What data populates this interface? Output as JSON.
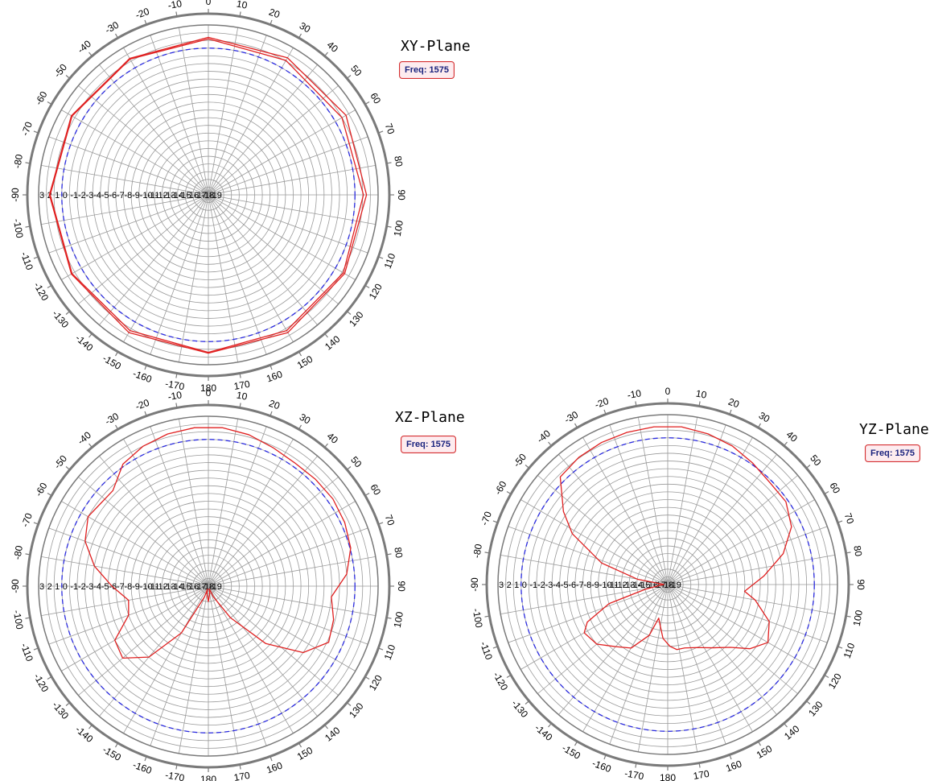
{
  "chart_data": [
    {
      "type": "polar",
      "title": "XY-Plane",
      "badge": "Freq: 1575",
      "angle_labels": [
        "0",
        "10",
        "20",
        "30",
        "40",
        "50",
        "60",
        "70",
        "80",
        "90",
        "100",
        "110",
        "120",
        "130",
        "140",
        "150",
        "160",
        "170",
        "180",
        "-170",
        "-160",
        "-150",
        "-140",
        "-130",
        "-120",
        "-110",
        "-100",
        "-90",
        "-80",
        "-70",
        "-60",
        "-50",
        "-40",
        "-30",
        "-20",
        "-10"
      ],
      "radial_labels": [
        "3",
        "2",
        "1",
        "0",
        "-1",
        "-2",
        "-3",
        "-4",
        "-5",
        "-6",
        "-7",
        "-8",
        "-9",
        "-10",
        "-11",
        "-12",
        "-13",
        "-14",
        "-15",
        "-16",
        "-17",
        "-18",
        "-19"
      ],
      "rlim": [
        -19,
        3
      ],
      "grid": true,
      "reference_level": 0,
      "series": [
        {
          "values": [
            {
              "angle": 0,
              "gain": 1.4
            },
            {
              "angle": 30,
              "gain": 1.5
            },
            {
              "angle": 60,
              "gain": 1.6
            },
            {
              "angle": 90,
              "gain": 1.5
            },
            {
              "angle": 120,
              "gain": 1.4
            },
            {
              "angle": 150,
              "gain": 1.6
            },
            {
              "angle": 180,
              "gain": 1.5
            },
            {
              "angle": 210,
              "gain": 1.6
            },
            {
              "angle": 240,
              "gain": 1.5
            },
            {
              "angle": 270,
              "gain": 1.6
            },
            {
              "angle": 300,
              "gain": 1.5
            },
            {
              "angle": 330,
              "gain": 1.4
            },
            {
              "angle": 360,
              "gain": 1.4
            }
          ]
        },
        {
          "values": [
            {
              "angle": 0,
              "gain": 1.2
            },
            {
              "angle": 30,
              "gain": 1.1
            },
            {
              "angle": 60,
              "gain": 1.0
            },
            {
              "angle": 90,
              "gain": 1.1
            },
            {
              "angle": 120,
              "gain": 1.2
            },
            {
              "angle": 150,
              "gain": 1.3
            },
            {
              "angle": 180,
              "gain": 1.4
            },
            {
              "angle": 210,
              "gain": 1.3
            },
            {
              "angle": 240,
              "gain": 1.4
            },
            {
              "angle": 270,
              "gain": 1.5
            },
            {
              "angle": 300,
              "gain": 1.4
            },
            {
              "angle": 330,
              "gain": 1.3
            },
            {
              "angle": 360,
              "gain": 1.2
            }
          ]
        }
      ]
    },
    {
      "type": "polar",
      "title": "XZ-Plane",
      "badge": "Freq: 1575",
      "angle_labels": [
        "0",
        "10",
        "20",
        "30",
        "40",
        "50",
        "60",
        "70",
        "80",
        "90",
        "100",
        "110",
        "120",
        "130",
        "140",
        "150",
        "160",
        "170",
        "180",
        "-170",
        "-160",
        "-150",
        "-140",
        "-130",
        "-120",
        "-110",
        "-100",
        "-90",
        "-80",
        "-70",
        "-60",
        "-50",
        "-40",
        "-30",
        "-20",
        "-10"
      ],
      "radial_labels": [
        "3",
        "2",
        "1",
        "0",
        "-1",
        "-2",
        "-3",
        "-4",
        "-5",
        "-6",
        "-7",
        "-8",
        "-9",
        "-10",
        "-11",
        "-12",
        "-13",
        "-14",
        "-15",
        "-16",
        "-17",
        "-18",
        "-19"
      ],
      "rlim": [
        -19,
        3
      ],
      "grid": true,
      "reference_level": 0,
      "series": [
        {
          "values": [
            {
              "angle": -45,
              "gain": -1.5
            },
            {
              "angle": -35,
              "gain": 0.3
            },
            {
              "angle": -25,
              "gain": 1.0
            },
            {
              "angle": -15,
              "gain": 1.4
            },
            {
              "angle": -5,
              "gain": 1.6
            },
            {
              "angle": 5,
              "gain": 1.6
            },
            {
              "angle": 15,
              "gain": 1.3
            },
            {
              "angle": 25,
              "gain": 0.8
            },
            {
              "angle": 35,
              "gain": 0.5
            },
            {
              "angle": 45,
              "gain": 0.6
            },
            {
              "angle": 55,
              "gain": 0.7
            },
            {
              "angle": 65,
              "gain": 0.5
            },
            {
              "angle": 75,
              "gain": 0.1
            },
            {
              "angle": 85,
              "gain": -1.0
            },
            {
              "angle": 95,
              "gain": -3.0
            },
            {
              "angle": 105,
              "gain": -2.2
            },
            {
              "angle": 115,
              "gain": -1.8
            },
            {
              "angle": 125,
              "gain": -4.0
            },
            {
              "angle": 135,
              "gain": -8.5
            },
            {
              "angle": 145,
              "gain": -14.0
            },
            {
              "angle": 155,
              "gain": -17.5
            },
            {
              "angle": 160,
              "gain": -18.6
            },
            {
              "angle": 170,
              "gain": -18.0
            },
            {
              "angle": 180,
              "gain": -17.0
            },
            {
              "angle": 190,
              "gain": -18.0
            },
            {
              "angle": 195,
              "gain": -18.6
            },
            {
              "angle": 200,
              "gain": -17.5
            },
            {
              "angle": 210,
              "gain": -12.0
            },
            {
              "angle": 220,
              "gain": -7.0
            },
            {
              "angle": 230,
              "gain": -4.5
            },
            {
              "angle": 240,
              "gain": -5.0
            },
            {
              "angle": 250,
              "gain": -8.0
            },
            {
              "angle": 260,
              "gain": -8.5
            },
            {
              "angle": 270,
              "gain": -6.5
            },
            {
              "angle": 280,
              "gain": -4.0
            },
            {
              "angle": 290,
              "gain": -2.0
            },
            {
              "angle": 300,
              "gain": -1.0
            },
            {
              "angle": 315,
              "gain": -1.5
            }
          ]
        }
      ]
    },
    {
      "type": "polar",
      "title": "YZ-Plane",
      "badge": "Freq: 1575",
      "angle_labels": [
        "0",
        "10",
        "20",
        "30",
        "40",
        "50",
        "60",
        "70",
        "80",
        "90",
        "100",
        "110",
        "120",
        "130",
        "140",
        "150",
        "160",
        "170",
        "180",
        "-170",
        "-160",
        "-150",
        "-140",
        "-130",
        "-120",
        "-110",
        "-100",
        "-90",
        "-80",
        "-70",
        "-60",
        "-50",
        "-40",
        "-30",
        "-20",
        "-10"
      ],
      "radial_labels": [
        "3",
        "2",
        "1",
        "0",
        "-1",
        "-2",
        "-3",
        "-4",
        "-5",
        "-6",
        "-7",
        "-8",
        "-9",
        "-10",
        "-11",
        "-12",
        "-13",
        "-14",
        "-15",
        "-16",
        "-17",
        "-18",
        "-19"
      ],
      "rlim": [
        -19,
        3
      ],
      "grid": true,
      "reference_level": 0,
      "series": [
        {
          "values": [
            {
              "angle": -45,
              "gain": 0.7
            },
            {
              "angle": -35,
              "gain": 1.1
            },
            {
              "angle": -25,
              "gain": 1.3
            },
            {
              "angle": -15,
              "gain": 1.4
            },
            {
              "angle": -5,
              "gain": 1.5
            },
            {
              "angle": 5,
              "gain": 1.5
            },
            {
              "angle": 15,
              "gain": 1.2
            },
            {
              "angle": 25,
              "gain": 0.8
            },
            {
              "angle": 35,
              "gain": 0.2
            },
            {
              "angle": 45,
              "gain": -0.3
            },
            {
              "angle": 55,
              "gain": -0.3
            },
            {
              "angle": 65,
              "gain": -1.3
            },
            {
              "angle": 75,
              "gain": -3.5
            },
            {
              "angle": 85,
              "gain": -6.5
            },
            {
              "angle": 95,
              "gain": -9.0
            },
            {
              "angle": 100,
              "gain": -7.5
            },
            {
              "angle": 110,
              "gain": -5.0
            },
            {
              "angle": 120,
              "gain": -4.0
            },
            {
              "angle": 128,
              "gain": -5.5
            },
            {
              "angle": 135,
              "gain": -7.5
            },
            {
              "angle": 145,
              "gain": -9.0
            },
            {
              "angle": 155,
              "gain": -10.0
            },
            {
              "angle": 165,
              "gain": -10.5
            },
            {
              "angle": 172,
              "gain": -10.5
            },
            {
              "angle": 178,
              "gain": -11.0
            },
            {
              "angle": 185,
              "gain": -12.0
            },
            {
              "angle": 190,
              "gain": -13.5
            },
            {
              "angle": 195,
              "gain": -14.5
            },
            {
              "angle": 200,
              "gain": -12.0
            },
            {
              "angle": 210,
              "gain": -9.5
            },
            {
              "angle": 220,
              "gain": -8.5
            },
            {
              "angle": 230,
              "gain": -7.0
            },
            {
              "angle": 240,
              "gain": -6.5
            },
            {
              "angle": 245,
              "gain": -7.5
            },
            {
              "angle": 252,
              "gain": -11.0
            },
            {
              "angle": 258,
              "gain": -16.0
            },
            {
              "angle": 265,
              "gain": -18.0
            },
            {
              "angle": 272,
              "gain": -18.5
            },
            {
              "angle": 280,
              "gain": -15.0
            },
            {
              "angle": 288,
              "gain": -10.0
            },
            {
              "angle": 298,
              "gain": -5.0
            },
            {
              "angle": 305,
              "gain": -2.5
            },
            {
              "angle": 315,
              "gain": 0.7
            }
          ]
        }
      ]
    }
  ],
  "colors": {
    "trace": "#e02020",
    "reference": "#2a2adf",
    "grid": "#9a9a9a",
    "outer_ring": "#7a7a7a",
    "badge_border": "#d32f2f",
    "badge_text": "#1a237e"
  }
}
